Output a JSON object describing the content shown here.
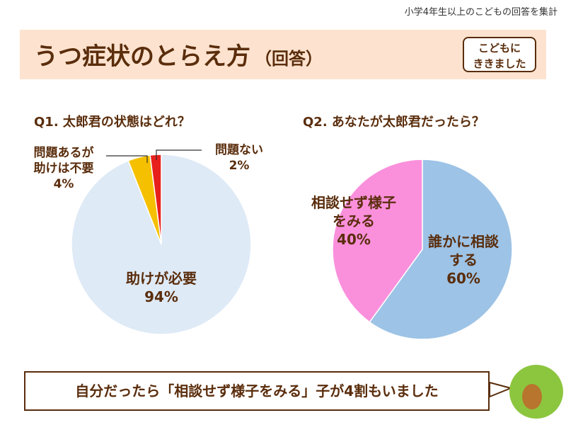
{
  "note": "小学4年生以上のこどもの回答を集計",
  "title": {
    "main": "うつ症状のとらえ方",
    "sub": "（回答）"
  },
  "badge": [
    "こどもに",
    "ききました"
  ],
  "footer": "自分だったら「相談せず様子をみる」子が4割もいました",
  "chart_data": [
    {
      "type": "pie",
      "title": "Q1. 太郎君の状態はどれ？",
      "categories": [
        "助けが必要",
        "問題あるが助けは不要",
        "問題ない"
      ],
      "values": [
        94,
        4,
        2
      ],
      "value_labels": [
        "94%",
        "4%",
        "2%"
      ],
      "colors": [
        "#deeaf6",
        "#f5c000",
        "#e8201c"
      ]
    },
    {
      "type": "pie",
      "title": "Q2. あなたが太郎君だったら？",
      "categories": [
        "誰かに相談する",
        "相談せず様子をみる"
      ],
      "values": [
        60,
        40
      ],
      "value_labels": [
        "60%",
        "40%"
      ],
      "colors": [
        "#9dc3e6",
        "#fa90dc"
      ]
    }
  ]
}
